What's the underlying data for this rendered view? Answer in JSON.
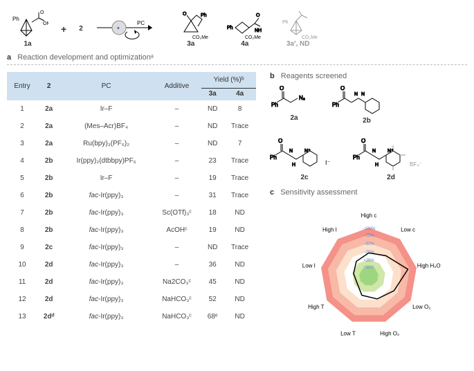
{
  "scheme": {
    "labels": {
      "s1": "1a",
      "s2": "2",
      "arrow_top": "PC",
      "prod1": "3a",
      "prod2": "4a",
      "prod3": "3a′, ND"
    },
    "sublabels": {
      "s1_sub": "Ph",
      "s1_r": "OMe",
      "prod1_r": "CO₂Me",
      "prod2_r": "CO₂Me",
      "prod3_r": "CO₂Me"
    }
  },
  "section_a": {
    "label": "a",
    "title": "Reaction development and optimizationᵃ"
  },
  "section_b": {
    "label": "b",
    "title": "Reagents screened"
  },
  "section_c": {
    "label": "c",
    "title": "Sensitivity assessment"
  },
  "table": {
    "headers": {
      "entry": "Entry",
      "col2": "2",
      "pc": "PC",
      "add": "Additive",
      "yield": "Yield (%)ᵇ",
      "y3a": "3a",
      "y4a": "4a"
    },
    "rows": [
      {
        "entry": "1",
        "r": "2a",
        "pc": "Ir–F",
        "add": "–",
        "y3": "ND",
        "y4": "8"
      },
      {
        "entry": "2",
        "r": "2a",
        "pc": "(Mes–Acr)BF₄",
        "add": "–",
        "y3": "ND",
        "y4": "Trace"
      },
      {
        "entry": "3",
        "r": "2a",
        "pc": "Ru(bpy)₃(PF₆)₂",
        "add": "–",
        "y3": "ND",
        "y4": "7"
      },
      {
        "entry": "4",
        "r": "2b",
        "pc": "Ir(ppy)₂(dtbbpy)PF₆",
        "add": "–",
        "y3": "23",
        "y4": "Trace"
      },
      {
        "entry": "5",
        "r": "2b",
        "pc": "Ir–F",
        "add": "–",
        "y3": "19",
        "y4": "Trace"
      },
      {
        "entry": "6",
        "r": "2b",
        "pc": "fac-Ir(ppy)₃",
        "add": "–",
        "y3": "31",
        "y4": "Trace"
      },
      {
        "entry": "7",
        "r": "2b",
        "pc": "fac-Ir(ppy)₃",
        "add": "Sc(OTf)₃ᶜ",
        "y3": "18",
        "y4": "ND"
      },
      {
        "entry": "8",
        "r": "2b",
        "pc": "fac-Ir(ppy)₃",
        "add": "AcOHᶜ",
        "y3": "19",
        "y4": "ND"
      },
      {
        "entry": "9",
        "r": "2c",
        "pc": "fac-Ir(ppy)₃",
        "add": "–",
        "y3": "ND",
        "y4": "Trace"
      },
      {
        "entry": "10",
        "r": "2d",
        "pc": "fac-Ir(ppy)₃",
        "add": "–",
        "y3": "36",
        "y4": "ND"
      },
      {
        "entry": "11",
        "r": "2d",
        "pc": "fac-Ir(ppy)₃",
        "add": "Na2CO₃ᶜ",
        "y3": "45",
        "y4": "ND"
      },
      {
        "entry": "12",
        "r": "2d",
        "pc": "fac-Ir(ppy)₃",
        "add": "NaHCO₃ᶜ",
        "y3": "52",
        "y4": "ND"
      },
      {
        "entry": "13",
        "r": "2dᵈ",
        "pc": "fac-Ir(ppy)₃",
        "add": "NaHCO₃ᶜ",
        "y3": "68ᵉ",
        "y4": "ND"
      }
    ]
  },
  "reagents": {
    "r2a": "2a",
    "r2b": "2b",
    "r2c": "2c",
    "r2d": "2d",
    "anion_c": "I⁻",
    "anion_d": "BF₄⁻"
  },
  "radar": {
    "axes": [
      "High c",
      "Low c",
      "High H₂O",
      "Low O₂",
      "High O₂",
      "Low T",
      "High T",
      "Low I",
      "High I"
    ],
    "rings": [
      "+50%",
      "+25%",
      "−25%",
      "−50%",
      "−75%",
      "−100%"
    ],
    "ring_colors": [
      "#9dd67f",
      "#cfe7a7",
      "#ffffff",
      "#fde0cc",
      "#f8b9a7",
      "#f49189"
    ],
    "data": [
      0.48,
      0.55,
      0.82,
      0.6,
      0.5,
      0.42,
      0.28,
      0.32,
      0.4
    ],
    "line_color": "#000",
    "data_fill": "none"
  }
}
